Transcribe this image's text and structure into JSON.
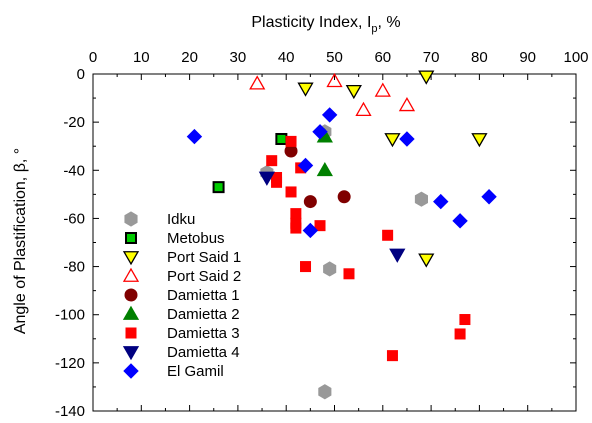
{
  "chart_data": {
    "type": "scatter",
    "xlabel": "Plasticity Index, I",
    "xlabel_sub": "p",
    "xlabel_unit": ", %",
    "ylabel": "Angle of Plastification, β, °",
    "xlim": [
      0,
      100
    ],
    "ylim": [
      -140,
      0
    ],
    "x_ticks": [
      "0",
      "10",
      "20",
      "30",
      "40",
      "50",
      "60",
      "70",
      "80",
      "90",
      "100"
    ],
    "y_ticks": [
      "0",
      "-20",
      "-40",
      "-60",
      "-80",
      "-100",
      "-120",
      "-140"
    ],
    "x_axis_position": "top",
    "grid": false,
    "legend_position": "left",
    "series": [
      {
        "name": "Idku",
        "marker": "hexagon",
        "color": "#999999",
        "stroke": "#999999",
        "points": [
          [
            36,
            -41
          ],
          [
            48,
            -24
          ],
          [
            68,
            -52
          ],
          [
            49,
            -81
          ],
          [
            48,
            -132
          ]
        ]
      },
      {
        "name": "Metobus",
        "marker": "square",
        "color": "#00cc00",
        "stroke": "#000000",
        "points": [
          [
            26,
            -47
          ],
          [
            39,
            -27
          ]
        ]
      },
      {
        "name": "Port Said 1",
        "marker": "triangle-down",
        "color": "#ffff00",
        "stroke": "#000000",
        "points": [
          [
            44,
            -6
          ],
          [
            54,
            -7
          ],
          [
            62,
            -27
          ],
          [
            69,
            -1
          ],
          [
            80,
            -27
          ],
          [
            69,
            -77
          ]
        ]
      },
      {
        "name": "Port Said 2",
        "marker": "triangle-up",
        "color": "none",
        "stroke": "#ff0000",
        "points": [
          [
            34,
            -4
          ],
          [
            50,
            -3
          ],
          [
            56,
            -15
          ],
          [
            60,
            -7
          ],
          [
            65,
            -13
          ]
        ]
      },
      {
        "name": "Damietta 1",
        "marker": "circle",
        "color": "#800000",
        "stroke": "#800000",
        "points": [
          [
            41,
            -32
          ],
          [
            45,
            -53
          ],
          [
            52,
            -51
          ]
        ]
      },
      {
        "name": "Damietta 2",
        "marker": "triangle-up",
        "color": "#008000",
        "stroke": "#008000",
        "points": [
          [
            48,
            -26
          ],
          [
            48,
            -40
          ]
        ]
      },
      {
        "name": "Damietta 3",
        "marker": "square",
        "color": "#ff0000",
        "stroke": "#ff0000",
        "points": [
          [
            37,
            -36
          ],
          [
            38,
            -43
          ],
          [
            38,
            -45
          ],
          [
            41,
            -28
          ],
          [
            41,
            -49
          ],
          [
            42,
            -58
          ],
          [
            42,
            -62
          ],
          [
            42,
            -64
          ],
          [
            43,
            -39
          ],
          [
            44,
            -80
          ],
          [
            47,
            -63
          ],
          [
            53,
            -83
          ],
          [
            61,
            -67
          ],
          [
            62,
            -117
          ],
          [
            76,
            -108
          ],
          [
            77,
            -102
          ]
        ]
      },
      {
        "name": "Damietta 4",
        "marker": "triangle-down",
        "color": "#000080",
        "stroke": "#000080",
        "points": [
          [
            36,
            -43
          ],
          [
            63,
            -75
          ]
        ]
      },
      {
        "name": "El Gamil",
        "marker": "diamond",
        "color": "#0000ff",
        "stroke": "#0000ff",
        "points": [
          [
            21,
            -26
          ],
          [
            44,
            -38
          ],
          [
            45,
            -65
          ],
          [
            47,
            -24
          ],
          [
            49,
            -17
          ],
          [
            65,
            -27
          ],
          [
            72,
            -53
          ],
          [
            76,
            -61
          ],
          [
            82,
            -51
          ]
        ]
      }
    ]
  }
}
